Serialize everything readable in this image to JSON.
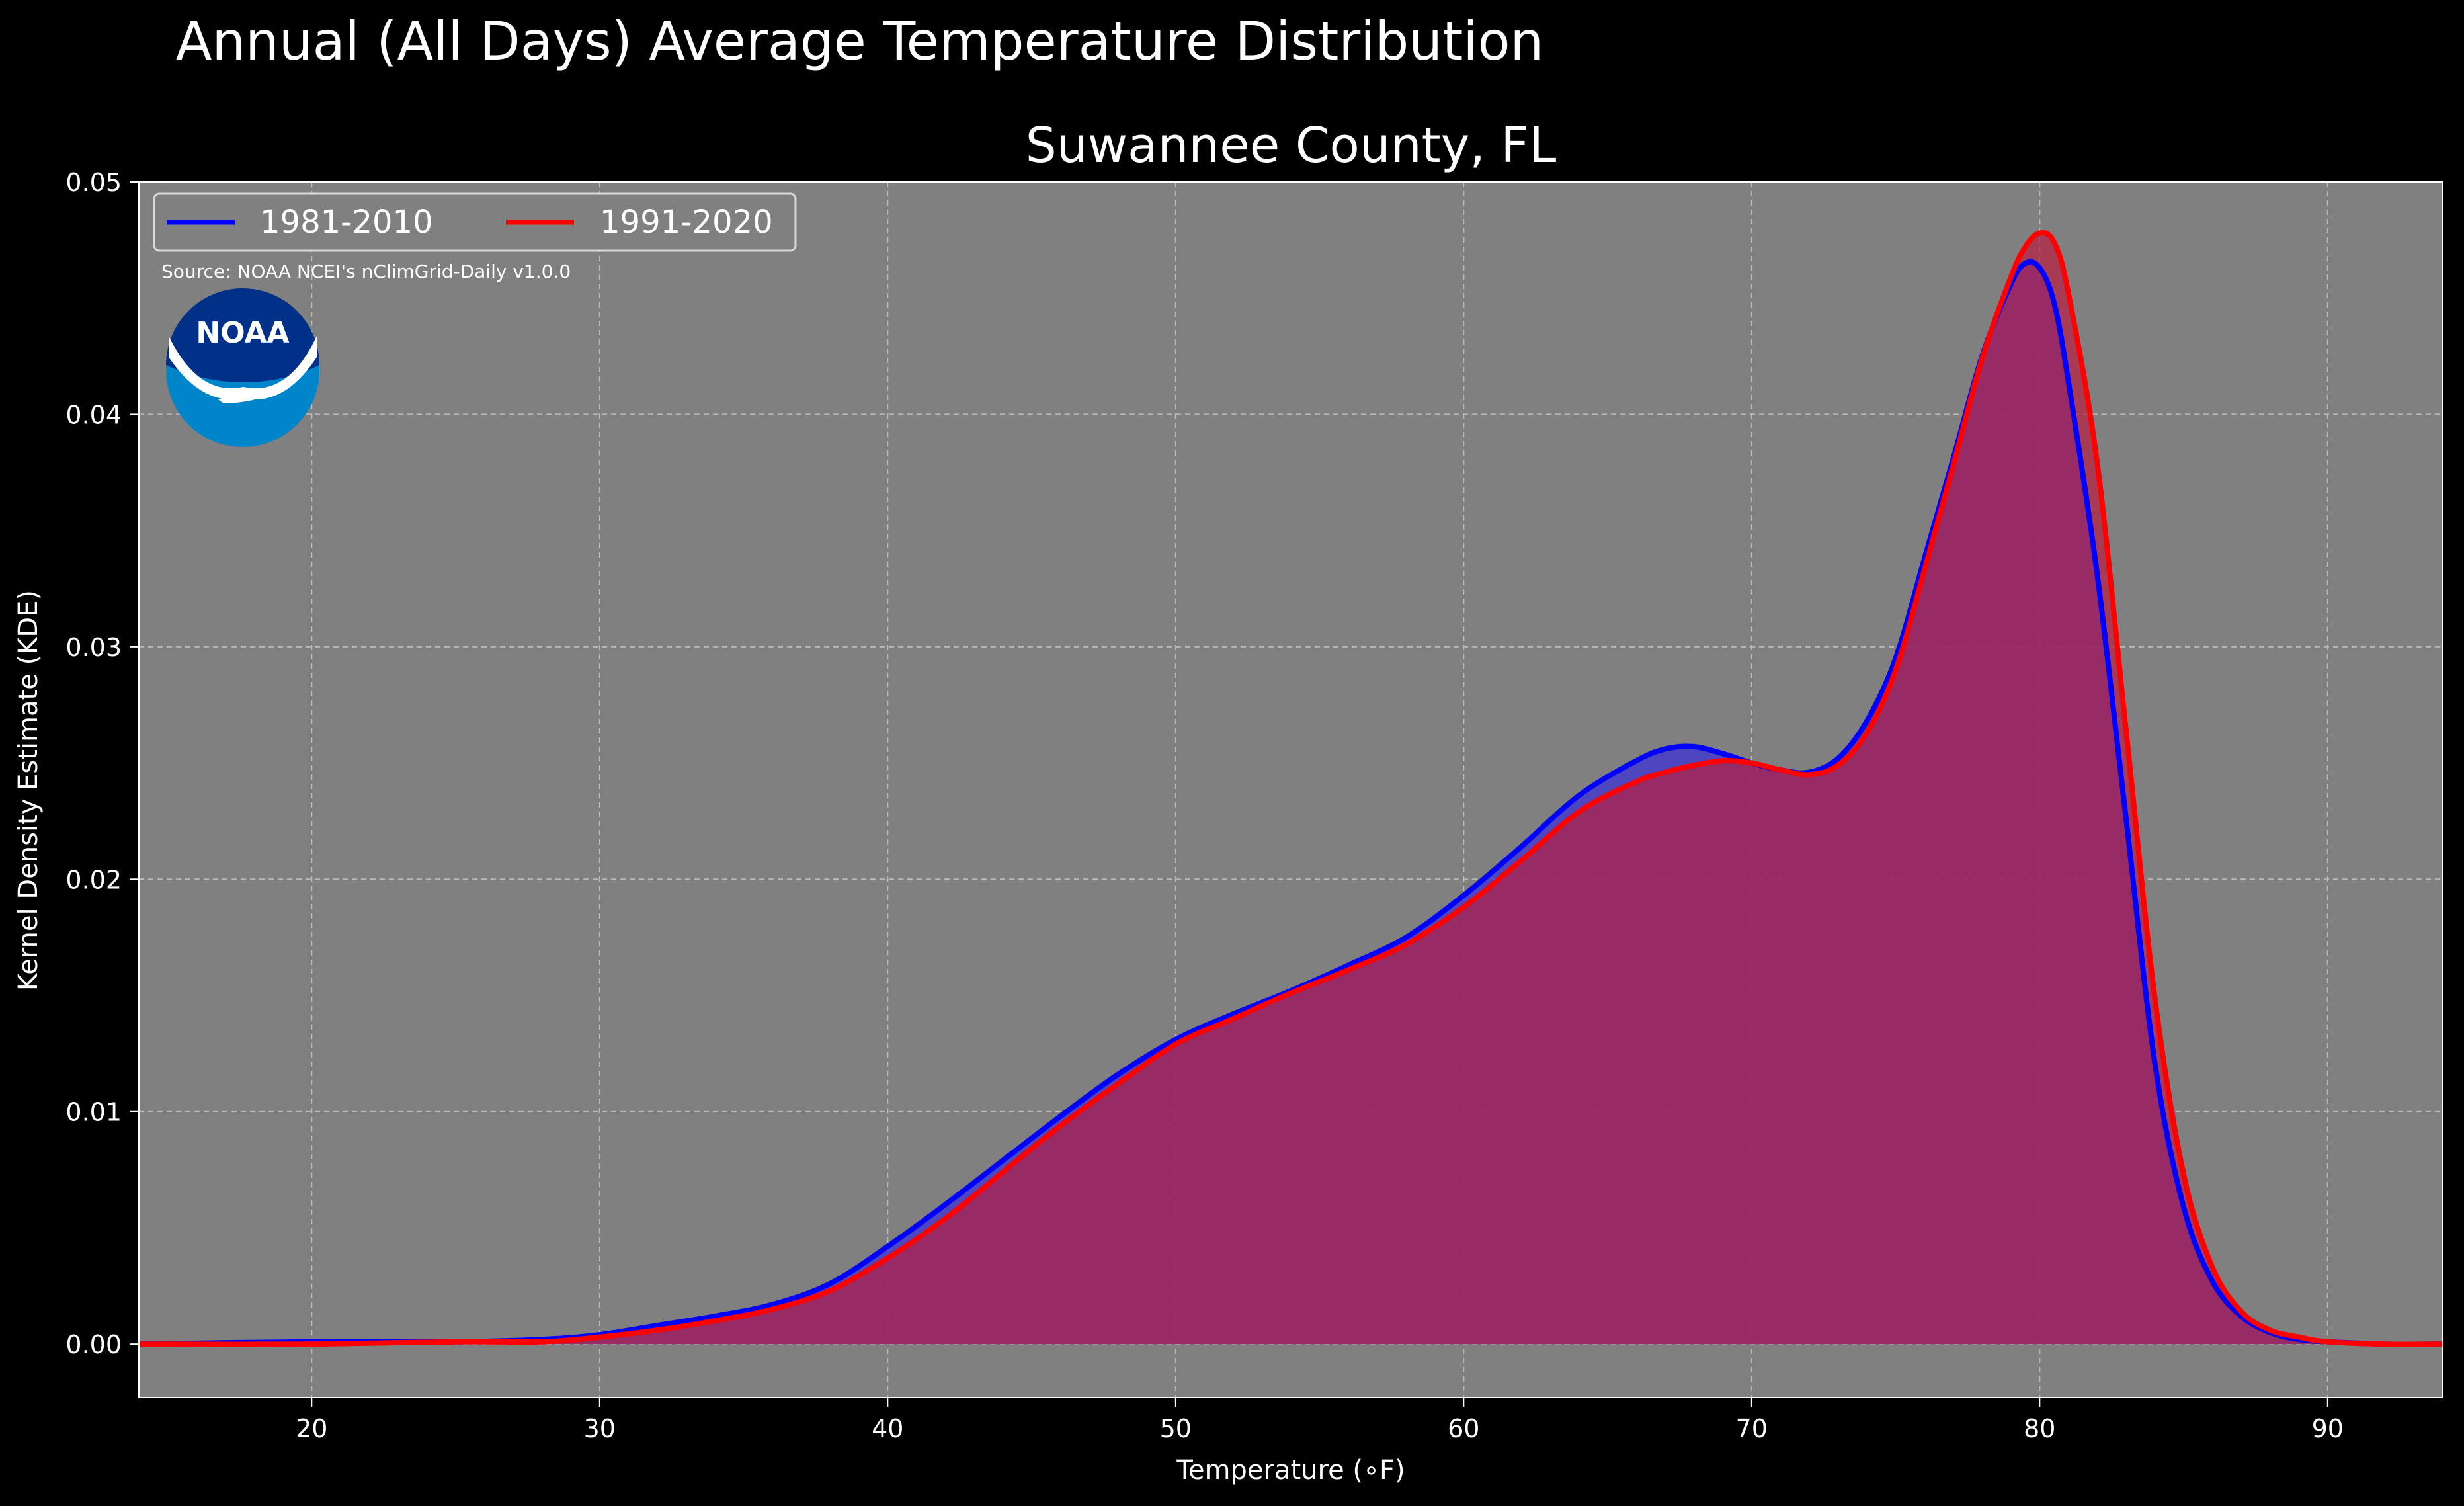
{
  "chart_data": {
    "type": "area",
    "title": "Annual (All Days) Average Temperature Distribution",
    "subtitle": "Suwannee County, FL",
    "xlabel": "Temperature (∘F)",
    "ylabel": "Kernel Density Estimate (KDE)",
    "xlim": [
      14,
      94
    ],
    "ylim": [
      -0.0023,
      0.05
    ],
    "xticks": [
      20,
      30,
      40,
      50,
      60,
      70,
      80,
      90
    ],
    "yticks": [
      "0.00",
      "0.01",
      "0.02",
      "0.03",
      "0.04",
      "0.05"
    ],
    "ytick_values": [
      0,
      0.01,
      0.02,
      0.03,
      0.04,
      0.05
    ],
    "grid": true,
    "legend_position": "top-left",
    "source_note": "Source: NOAA NCEI's nClimGrid-Daily v1.0.0",
    "logo_text": "NOAA",
    "series": [
      {
        "name": "1981-2010",
        "color": "#0000ff",
        "fill": "#3a2fd6",
        "x": [
          14,
          20,
          25,
          28,
          30,
          32,
          34,
          36,
          38,
          40,
          42,
          44,
          46,
          48,
          50,
          52,
          54,
          56,
          58,
          60,
          62,
          64,
          66,
          67,
          68,
          69,
          70,
          71,
          72,
          73,
          74,
          75,
          76,
          77,
          78,
          79,
          79.5,
          80,
          80.5,
          81,
          82,
          83,
          84,
          85,
          86,
          87,
          88,
          89,
          90,
          92,
          94
        ],
        "y": [
          0,
          0.0001,
          0.0001,
          0.0002,
          0.0004,
          0.0008,
          0.0012,
          0.0017,
          0.0026,
          0.0042,
          0.006,
          0.0079,
          0.0098,
          0.0116,
          0.0131,
          0.0142,
          0.0152,
          0.0163,
          0.0175,
          0.0193,
          0.0214,
          0.0236,
          0.0251,
          0.0256,
          0.0257,
          0.0254,
          0.025,
          0.0247,
          0.0246,
          0.0252,
          0.0268,
          0.0295,
          0.0338,
          0.0381,
          0.0425,
          0.0456,
          0.0465,
          0.0463,
          0.0448,
          0.0414,
          0.0331,
          0.0226,
          0.0121,
          0.0059,
          0.0027,
          0.0012,
          0.0005,
          0.0002,
          0.0001,
          0,
          0
        ]
      },
      {
        "name": "1991-2020",
        "color": "#ff0000",
        "fill": "#b52043",
        "x": [
          14,
          20,
          25,
          28,
          30,
          32,
          34,
          36,
          38,
          40,
          42,
          44,
          46,
          48,
          50,
          52,
          54,
          56,
          58,
          60,
          62,
          64,
          66,
          67,
          68,
          69,
          70,
          71,
          72,
          73,
          74,
          75,
          76,
          77,
          78,
          79,
          79.5,
          80,
          80.5,
          81,
          82,
          83,
          84,
          85,
          86,
          87,
          88,
          89,
          90,
          92,
          94
        ],
        "y": [
          0,
          0,
          0.0001,
          0.0001,
          0.0003,
          0.0006,
          0.001,
          0.0015,
          0.0023,
          0.0037,
          0.0054,
          0.0074,
          0.0094,
          0.0112,
          0.0129,
          0.014,
          0.0151,
          0.0161,
          0.0172,
          0.0188,
          0.0208,
          0.0229,
          0.0242,
          0.0246,
          0.0249,
          0.0251,
          0.025,
          0.0247,
          0.0245,
          0.0249,
          0.0263,
          0.029,
          0.0333,
          0.0378,
          0.0424,
          0.0459,
          0.0472,
          0.0478,
          0.0474,
          0.0452,
          0.0379,
          0.0264,
          0.0149,
          0.0073,
          0.0033,
          0.0014,
          0.0006,
          0.0003,
          0.0001,
          0,
          0
        ]
      }
    ]
  }
}
